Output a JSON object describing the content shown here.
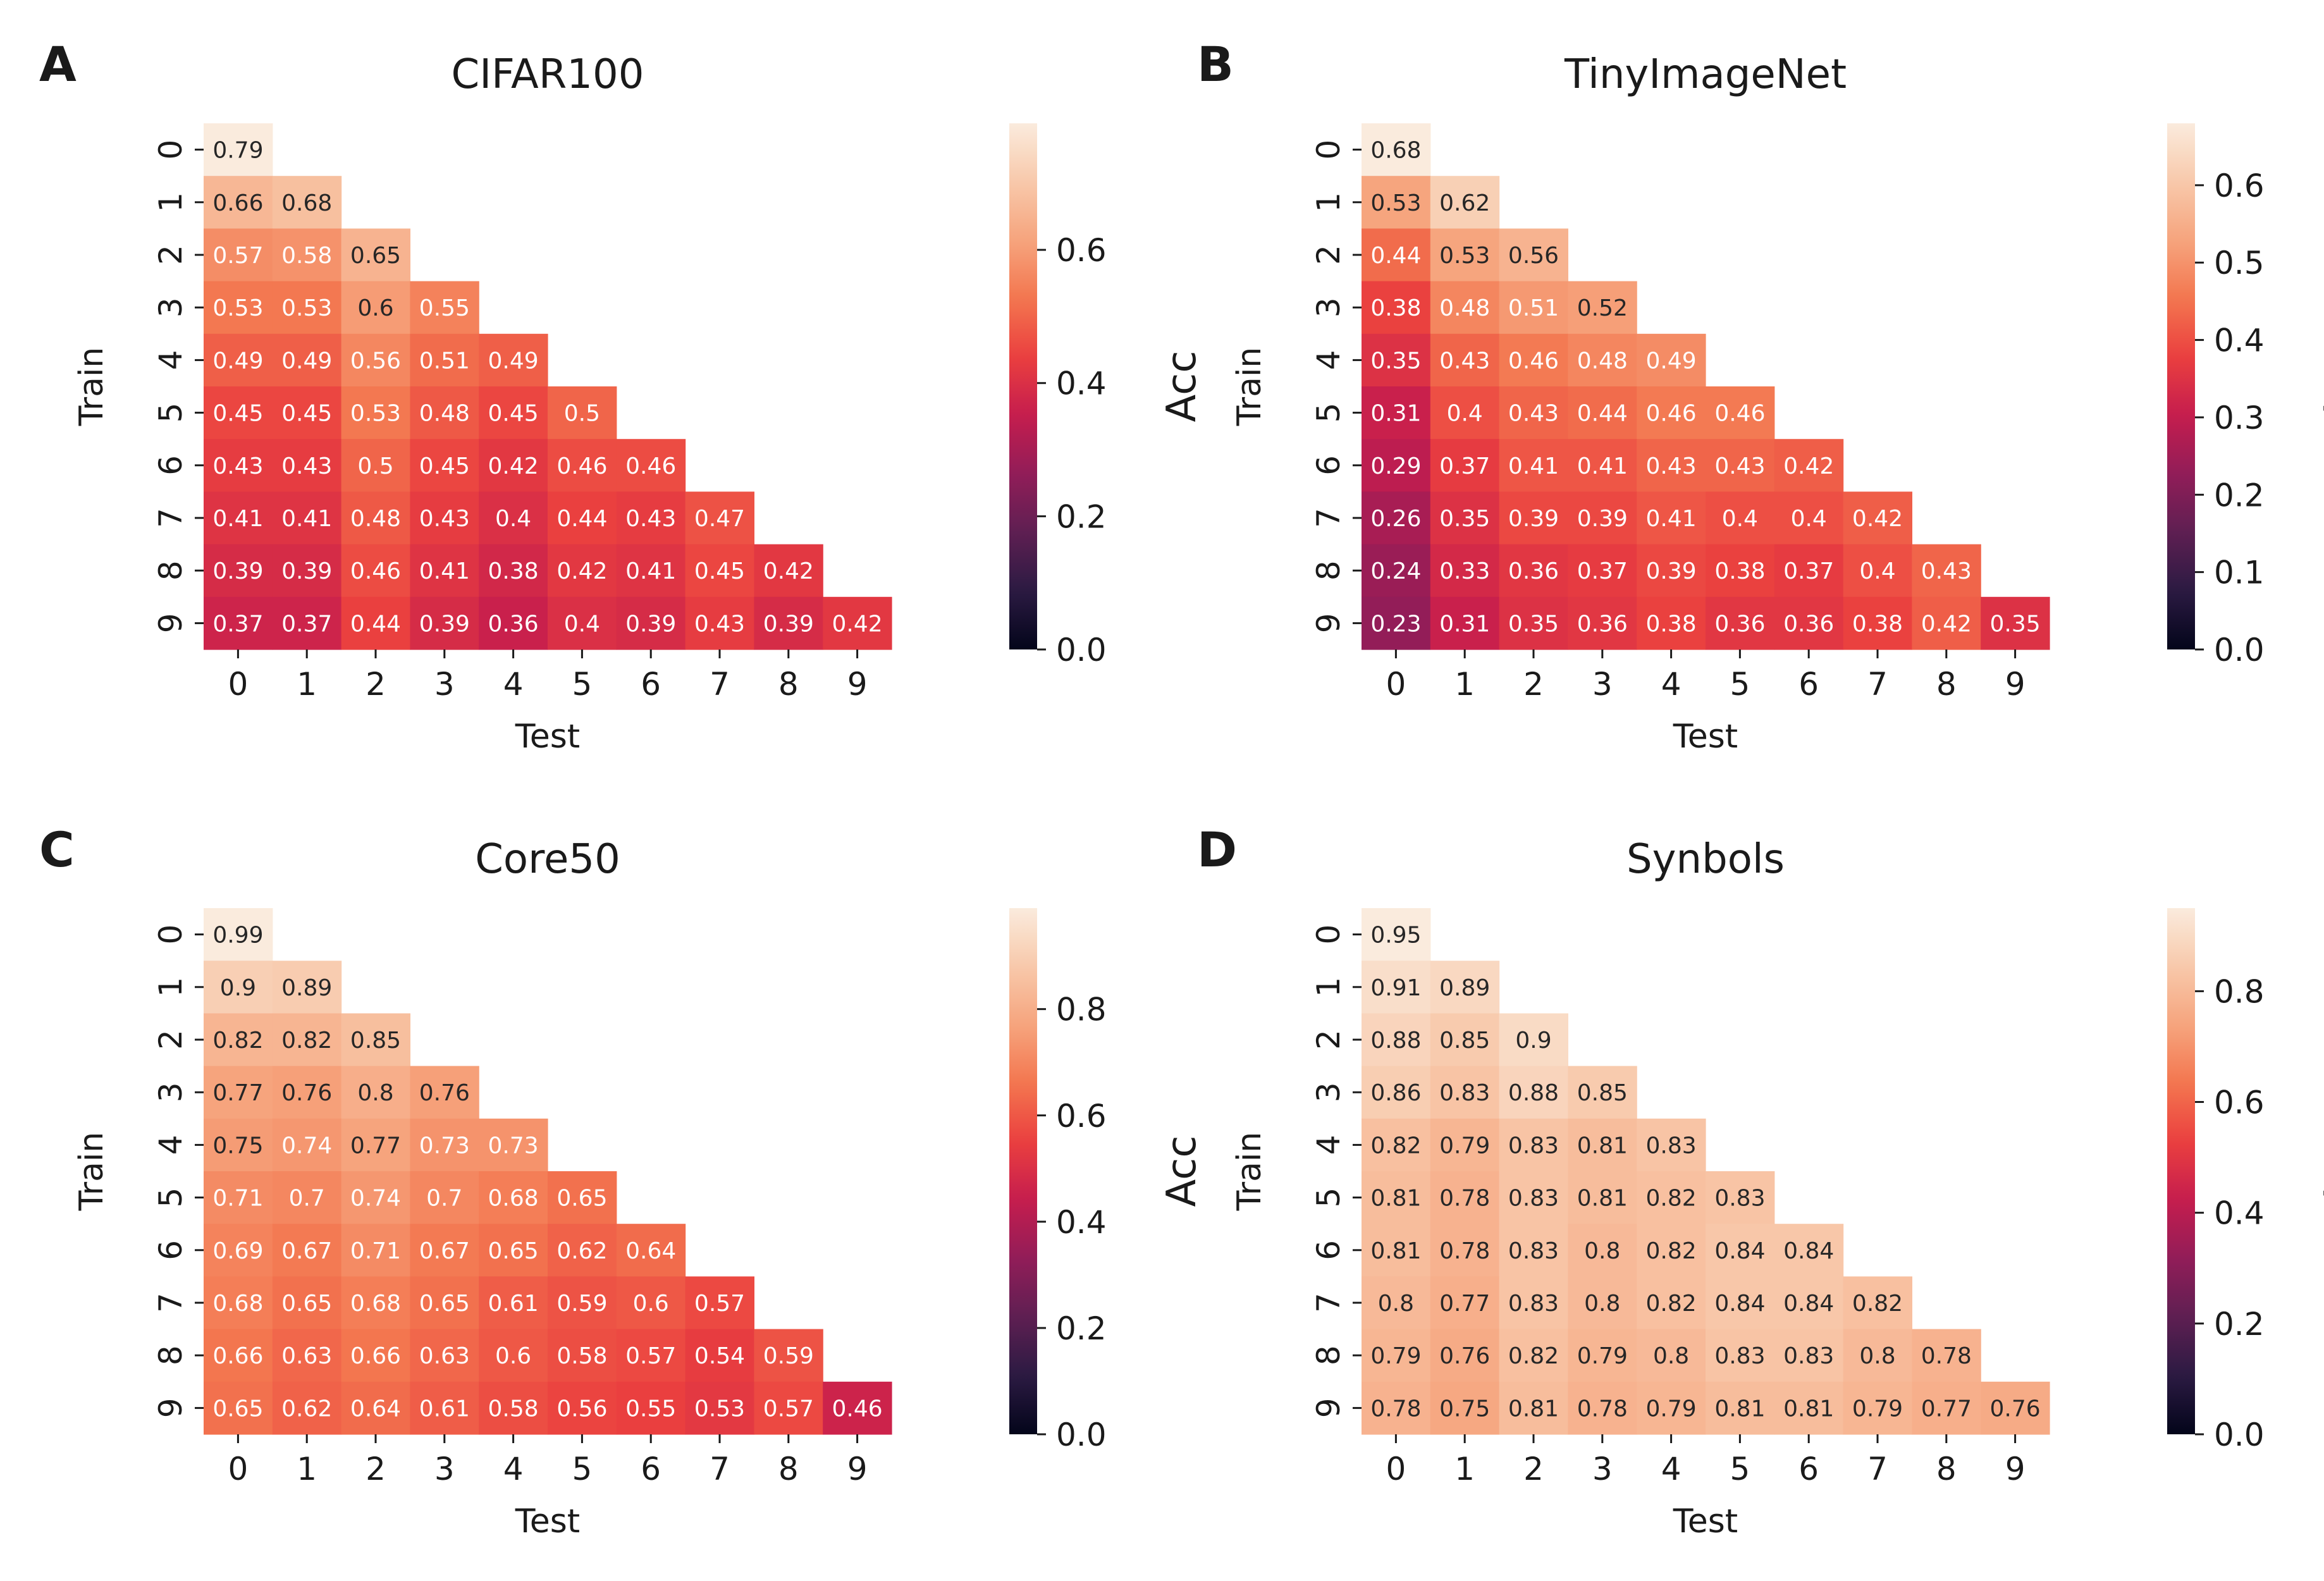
{
  "chart_data": [
    {
      "panel": "A",
      "type": "heatmap",
      "title": "CIFAR100",
      "xlabel": "Test",
      "ylabel": "Train",
      "colorbar_label": "Acc",
      "x_ticks": [
        "0",
        "1",
        "2",
        "3",
        "4",
        "5",
        "6",
        "7",
        "8",
        "9"
      ],
      "y_ticks": [
        "0",
        "1",
        "2",
        "3",
        "4",
        "5",
        "6",
        "7",
        "8",
        "9"
      ],
      "vmin": 0.0,
      "vmax": 0.79,
      "colorbar_ticks": [
        0.0,
        0.2,
        0.4,
        0.6
      ],
      "colorbar_tick_labels": [
        "0.0",
        "0.2",
        "0.4",
        "0.6"
      ],
      "values": [
        [
          0.79
        ],
        [
          0.66,
          0.68
        ],
        [
          0.57,
          0.58,
          0.65
        ],
        [
          0.53,
          0.53,
          0.6,
          0.55
        ],
        [
          0.49,
          0.49,
          0.56,
          0.51,
          0.49
        ],
        [
          0.45,
          0.45,
          0.53,
          0.48,
          0.45,
          0.5
        ],
        [
          0.43,
          0.43,
          0.5,
          0.45,
          0.42,
          0.46,
          0.46
        ],
        [
          0.41,
          0.41,
          0.48,
          0.43,
          0.4,
          0.44,
          0.43,
          0.47
        ],
        [
          0.39,
          0.39,
          0.46,
          0.41,
          0.38,
          0.42,
          0.41,
          0.45,
          0.42
        ],
        [
          0.37,
          0.37,
          0.44,
          0.39,
          0.36,
          0.4,
          0.39,
          0.43,
          0.39,
          0.42
        ]
      ]
    },
    {
      "panel": "B",
      "type": "heatmap",
      "title": "TinyImageNet",
      "xlabel": "Test",
      "ylabel": "Train",
      "colorbar_label": "Acc",
      "x_ticks": [
        "0",
        "1",
        "2",
        "3",
        "4",
        "5",
        "6",
        "7",
        "8",
        "9"
      ],
      "y_ticks": [
        "0",
        "1",
        "2",
        "3",
        "4",
        "5",
        "6",
        "7",
        "8",
        "9"
      ],
      "vmin": 0.0,
      "vmax": 0.68,
      "colorbar_ticks": [
        0.0,
        0.1,
        0.2,
        0.3,
        0.4,
        0.5,
        0.6
      ],
      "colorbar_tick_labels": [
        "0.0",
        "0.1",
        "0.2",
        "0.3",
        "0.4",
        "0.5",
        "0.6"
      ],
      "values": [
        [
          0.68
        ],
        [
          0.53,
          0.62
        ],
        [
          0.44,
          0.53,
          0.56
        ],
        [
          0.38,
          0.48,
          0.51,
          0.52
        ],
        [
          0.35,
          0.43,
          0.46,
          0.48,
          0.49
        ],
        [
          0.31,
          0.4,
          0.43,
          0.44,
          0.46,
          0.46
        ],
        [
          0.29,
          0.37,
          0.41,
          0.41,
          0.43,
          0.43,
          0.42
        ],
        [
          0.26,
          0.35,
          0.39,
          0.39,
          0.41,
          0.4,
          0.4,
          0.42
        ],
        [
          0.24,
          0.33,
          0.36,
          0.37,
          0.39,
          0.38,
          0.37,
          0.4,
          0.43
        ],
        [
          0.23,
          0.31,
          0.35,
          0.36,
          0.38,
          0.36,
          0.36,
          0.38,
          0.42,
          0.35
        ]
      ]
    },
    {
      "panel": "C",
      "type": "heatmap",
      "title": "Core50",
      "xlabel": "Test",
      "ylabel": "Train",
      "colorbar_label": "Acc",
      "x_ticks": [
        "0",
        "1",
        "2",
        "3",
        "4",
        "5",
        "6",
        "7",
        "8",
        "9"
      ],
      "y_ticks": [
        "0",
        "1",
        "2",
        "3",
        "4",
        "5",
        "6",
        "7",
        "8",
        "9"
      ],
      "vmin": 0.0,
      "vmax": 0.99,
      "colorbar_ticks": [
        0.0,
        0.2,
        0.4,
        0.6,
        0.8
      ],
      "colorbar_tick_labels": [
        "0.0",
        "0.2",
        "0.4",
        "0.6",
        "0.8"
      ],
      "values": [
        [
          0.99
        ],
        [
          0.9,
          0.89
        ],
        [
          0.82,
          0.82,
          0.85
        ],
        [
          0.77,
          0.76,
          0.8,
          0.76
        ],
        [
          0.75,
          0.74,
          0.77,
          0.73,
          0.73
        ],
        [
          0.71,
          0.7,
          0.74,
          0.7,
          0.68,
          0.65
        ],
        [
          0.69,
          0.67,
          0.71,
          0.67,
          0.65,
          0.62,
          0.64
        ],
        [
          0.68,
          0.65,
          0.68,
          0.65,
          0.61,
          0.59,
          0.6,
          0.57
        ],
        [
          0.66,
          0.63,
          0.66,
          0.63,
          0.6,
          0.58,
          0.57,
          0.54,
          0.59
        ],
        [
          0.65,
          0.62,
          0.64,
          0.61,
          0.58,
          0.56,
          0.55,
          0.53,
          0.57,
          0.46
        ]
      ]
    },
    {
      "panel": "D",
      "type": "heatmap",
      "title": "Synbols",
      "xlabel": "Test",
      "ylabel": "Train",
      "colorbar_label": "Acc",
      "x_ticks": [
        "0",
        "1",
        "2",
        "3",
        "4",
        "5",
        "6",
        "7",
        "8",
        "9"
      ],
      "y_ticks": [
        "0",
        "1",
        "2",
        "3",
        "4",
        "5",
        "6",
        "7",
        "8",
        "9"
      ],
      "vmin": 0.0,
      "vmax": 0.95,
      "colorbar_ticks": [
        0.0,
        0.2,
        0.4,
        0.6,
        0.8
      ],
      "colorbar_tick_labels": [
        "0.0",
        "0.2",
        "0.4",
        "0.6",
        "0.8"
      ],
      "values": [
        [
          0.95
        ],
        [
          0.91,
          0.89
        ],
        [
          0.88,
          0.85,
          0.9
        ],
        [
          0.86,
          0.83,
          0.88,
          0.85
        ],
        [
          0.82,
          0.79,
          0.83,
          0.81,
          0.83
        ],
        [
          0.81,
          0.78,
          0.83,
          0.81,
          0.82,
          0.83
        ],
        [
          0.81,
          0.78,
          0.83,
          0.8,
          0.82,
          0.84,
          0.84
        ],
        [
          0.8,
          0.77,
          0.83,
          0.8,
          0.82,
          0.84,
          0.84,
          0.82
        ],
        [
          0.79,
          0.76,
          0.82,
          0.79,
          0.8,
          0.83,
          0.83,
          0.8,
          0.78
        ],
        [
          0.78,
          0.75,
          0.81,
          0.78,
          0.79,
          0.81,
          0.81,
          0.79,
          0.77,
          0.76
        ]
      ]
    }
  ],
  "colormap": {
    "name": "rocket",
    "stops": [
      "#03051a",
      "#2b1a42",
      "#5e1f52",
      "#911d58",
      "#c51d4e",
      "#ea3f3f",
      "#f3764f",
      "#f6a47d",
      "#f8c9ab",
      "#faebdd"
    ]
  }
}
